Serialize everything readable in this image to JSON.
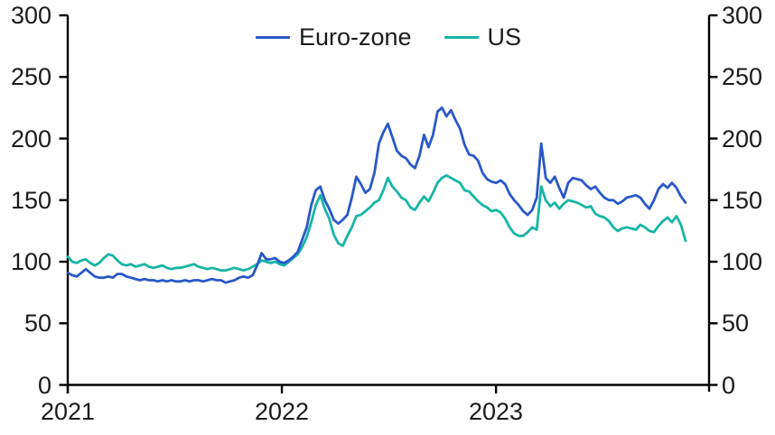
{
  "legend": {
    "items": [
      {
        "label": "Euro-zone",
        "color": "#2958c8"
      },
      {
        "label": "US",
        "color": "#17b5a6"
      }
    ]
  },
  "colors": {
    "axis": "#000000",
    "text": "#1b1b1b",
    "background": "#ffffff"
  },
  "chart_data": {
    "type": "line",
    "title": "",
    "xlabel": "",
    "ylabel": "",
    "grid": false,
    "legend_position": "top-center",
    "x_axis": {
      "ticks": [
        2021,
        2022,
        2023
      ],
      "tick_labels": [
        "2021",
        "2022",
        "2023"
      ],
      "range": [
        2021,
        2023.995
      ]
    },
    "y_axis": {
      "ticks": [
        0,
        50,
        100,
        150,
        200,
        250,
        300
      ],
      "tick_labels": [
        "0",
        "50",
        "100",
        "150",
        "200",
        "250",
        "300"
      ],
      "range": [
        0,
        300
      ],
      "sides": "both"
    },
    "series": [
      {
        "name": "Euro-zone",
        "color": "#2958c8",
        "x_start": 2021.0,
        "x_end": 2023.885,
        "values": [
          91,
          89,
          88,
          91,
          94,
          91,
          88,
          87,
          87,
          88,
          87,
          90,
          90,
          88,
          87,
          86,
          85,
          86,
          85,
          85,
          84,
          85,
          84,
          85,
          84,
          84,
          85,
          84,
          85,
          85,
          84,
          85,
          86,
          85,
          85,
          83,
          84,
          85,
          87,
          88,
          87,
          89,
          97,
          107,
          102,
          102,
          103,
          100,
          99,
          101,
          104,
          108,
          118,
          128,
          146,
          158,
          161,
          150,
          143,
          134,
          131,
          134,
          138,
          152,
          169,
          163,
          156,
          159,
          172,
          196,
          205,
          212,
          201,
          190,
          186,
          184,
          179,
          176,
          186,
          203,
          193,
          203,
          222,
          225,
          218,
          223,
          215,
          208,
          195,
          187,
          186,
          182,
          172,
          167,
          165,
          164,
          166,
          163,
          155,
          150,
          146,
          141,
          138,
          142,
          152,
          196,
          168,
          164,
          169,
          160,
          152,
          164,
          168,
          167,
          166,
          162,
          159,
          161,
          156,
          152,
          150,
          150,
          147,
          149,
          152,
          153,
          154,
          152,
          147,
          143,
          150,
          159,
          163,
          160,
          164,
          160,
          153,
          148
        ]
      },
      {
        "name": "US",
        "color": "#17b5a6",
        "x_start": 2021.0,
        "x_end": 2023.885,
        "values": [
          104,
          100,
          99,
          101,
          102,
          99,
          97,
          99,
          103,
          106,
          105,
          101,
          98,
          97,
          98,
          96,
          97,
          98,
          96,
          95,
          96,
          97,
          95,
          94,
          95,
          95,
          96,
          97,
          98,
          96,
          95,
          94,
          95,
          94,
          93,
          93,
          94,
          95,
          94,
          93,
          94,
          96,
          98,
          101,
          100,
          99,
          100,
          98,
          97,
          100,
          103,
          106,
          112,
          120,
          132,
          146,
          154,
          143,
          135,
          122,
          115,
          113,
          121,
          128,
          137,
          138,
          141,
          144,
          148,
          150,
          158,
          168,
          161,
          157,
          152,
          150,
          144,
          142,
          148,
          153,
          149,
          156,
          164,
          168,
          170,
          168,
          166,
          164,
          158,
          157,
          153,
          149,
          146,
          144,
          141,
          142,
          140,
          135,
          128,
          123,
          121,
          121,
          124,
          128,
          126,
          161,
          150,
          145,
          148,
          143,
          147,
          150,
          149,
          148,
          146,
          144,
          145,
          139,
          137,
          136,
          133,
          128,
          125,
          127,
          128,
          127,
          126,
          130,
          128,
          125,
          124,
          129,
          133,
          136,
          132,
          137,
          130,
          117
        ]
      }
    ]
  }
}
